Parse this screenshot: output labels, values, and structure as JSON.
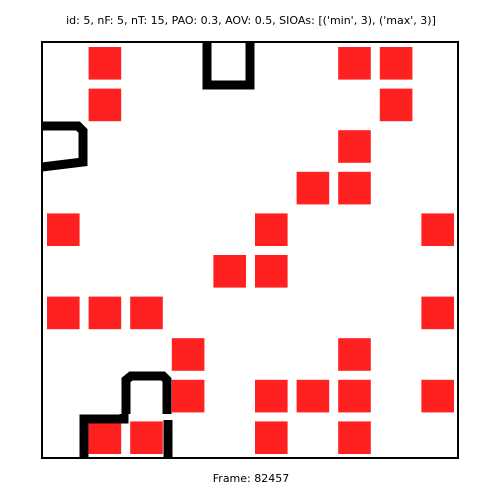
{
  "header": {
    "text": "id: 5, nF: 5, nT: 15, PAO: 0.3, AOV: 0.5, SIOAs: [('min', 3), ('max', 3)]"
  },
  "footer": {
    "frame_label": "Frame: 82457"
  },
  "grid": {
    "columns": 10,
    "rows": 10
  },
  "colors": {
    "cell_fill": "#ff2020",
    "outline": "#000000",
    "background": "#ffffff"
  },
  "red_cells": [
    [
      1,
      0
    ],
    [
      7,
      0
    ],
    [
      8,
      0
    ],
    [
      1,
      1
    ],
    [
      8,
      1
    ],
    [
      7,
      2
    ],
    [
      6,
      3
    ],
    [
      7,
      3
    ],
    [
      0,
      4
    ],
    [
      5,
      4
    ],
    [
      9,
      4
    ],
    [
      4,
      5
    ],
    [
      5,
      5
    ],
    [
      0,
      6
    ],
    [
      1,
      6
    ],
    [
      2,
      6
    ],
    [
      9,
      6
    ],
    [
      3,
      7
    ],
    [
      7,
      7
    ],
    [
      3,
      8
    ],
    [
      5,
      8
    ],
    [
      6,
      8
    ],
    [
      7,
      8
    ],
    [
      9,
      8
    ],
    [
      1,
      9
    ],
    [
      2,
      9
    ],
    [
      5,
      9
    ],
    [
      7,
      9
    ]
  ],
  "outlined_shapes": [
    {
      "name": "cup-shape-top",
      "cell": [
        4,
        0
      ],
      "shape": "U"
    },
    {
      "name": "cup-shape-left",
      "cell": [
        0,
        2
      ],
      "shape": "C-left"
    },
    {
      "name": "cup-shape-mid",
      "cell": [
        2,
        8
      ],
      "shape": "cap"
    },
    {
      "name": "cup-shape-bottom",
      "cell": [
        1,
        9
      ],
      "shape": "bracket"
    }
  ]
}
